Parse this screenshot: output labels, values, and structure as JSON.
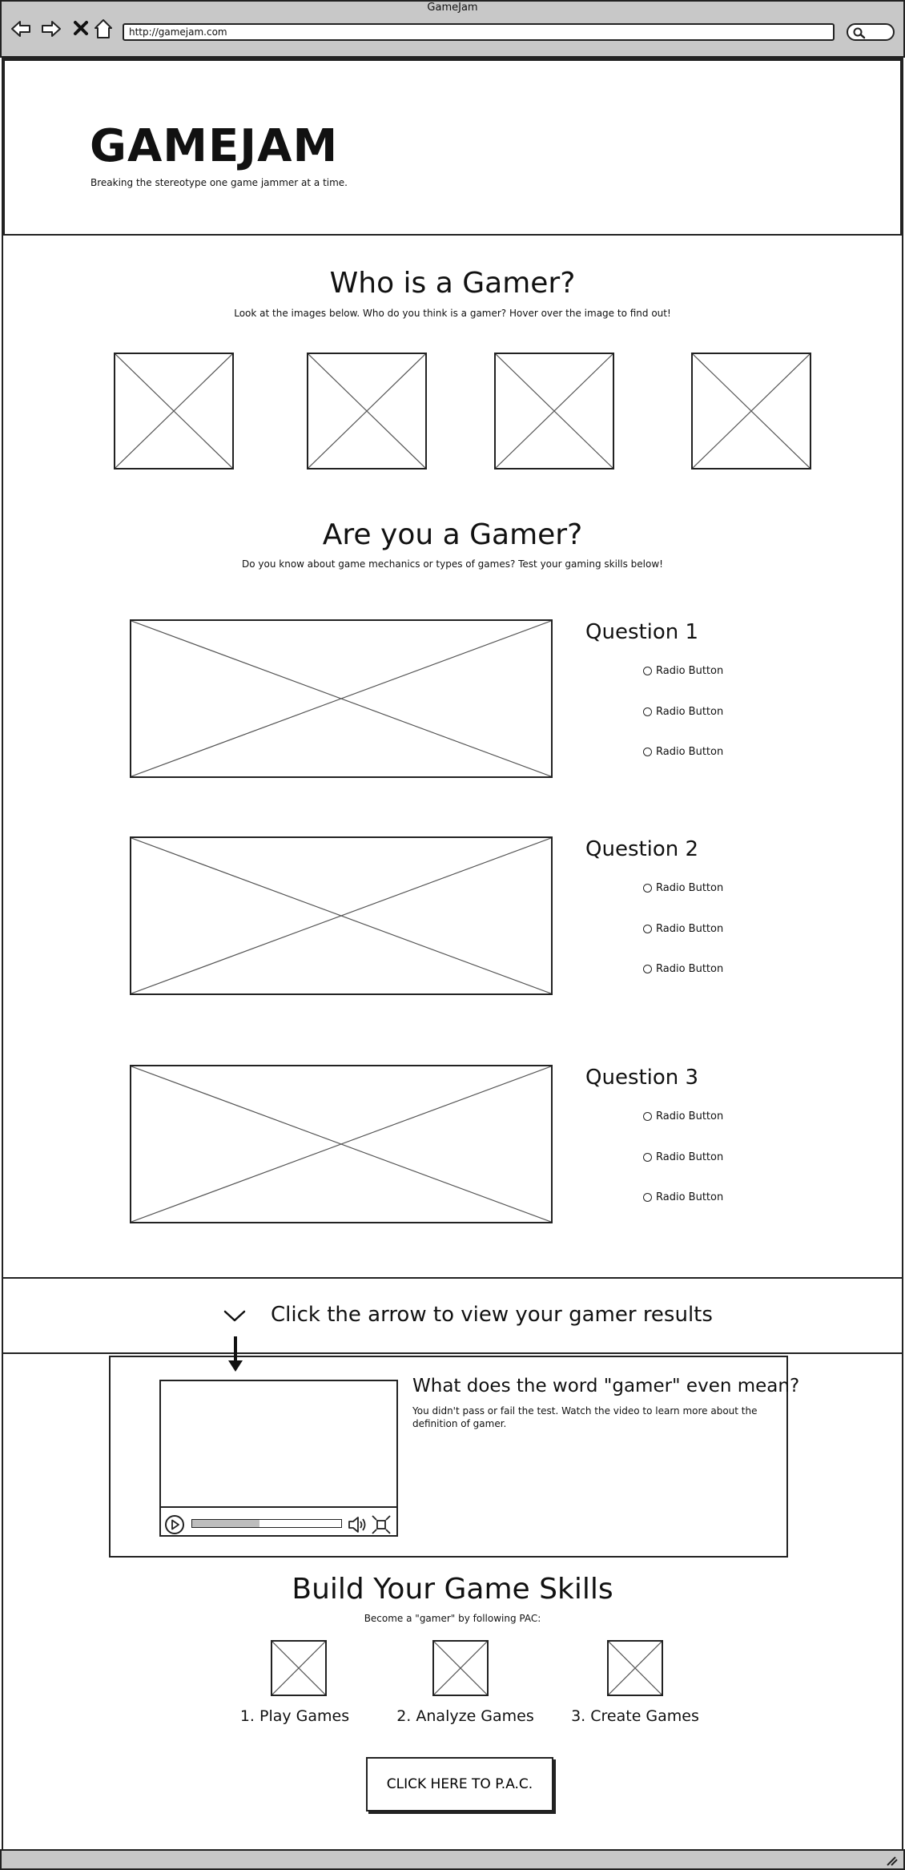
{
  "browser": {
    "window_title": "GameJam",
    "url": "http://gamejam.com"
  },
  "header": {
    "title": "GAMEJAM",
    "tagline": "Breaking the stereotype one game jammer at a time."
  },
  "who": {
    "title": "Who is a Gamer?",
    "subtitle": "Look at the images below. Who do you think is a gamer? Hover over the image to find out!"
  },
  "are": {
    "title": "Are you a Gamer?",
    "subtitle": "Do you know about game mechanics or types of games? Test your gaming skills below!",
    "questions": [
      {
        "title": "Question 1",
        "options": [
          "Radio Button",
          "Radio Button",
          "Radio Button"
        ]
      },
      {
        "title": "Question 2",
        "options": [
          "Radio Button",
          "Radio Button",
          "Radio Button"
        ]
      },
      {
        "title": "Question 3",
        "options": [
          "Radio Button",
          "Radio Button",
          "Radio Button"
        ]
      }
    ]
  },
  "results": {
    "text": "Click the arrow to view your gamer results"
  },
  "meaning": {
    "title": "What does the word \"gamer\" even mean?",
    "description": "You didn't pass or fail the test. Watch the video to learn more about the definition of gamer.",
    "video_progress": 0.45
  },
  "skills": {
    "title": "Build Your Game Skills",
    "subtitle": "Become a \"gamer\" by following PAC:",
    "items": [
      "1. Play Games",
      "2. Analyze Games",
      "3. Create Games"
    ]
  },
  "cta": {
    "label": "CLICK HERE TO P.A.C."
  }
}
